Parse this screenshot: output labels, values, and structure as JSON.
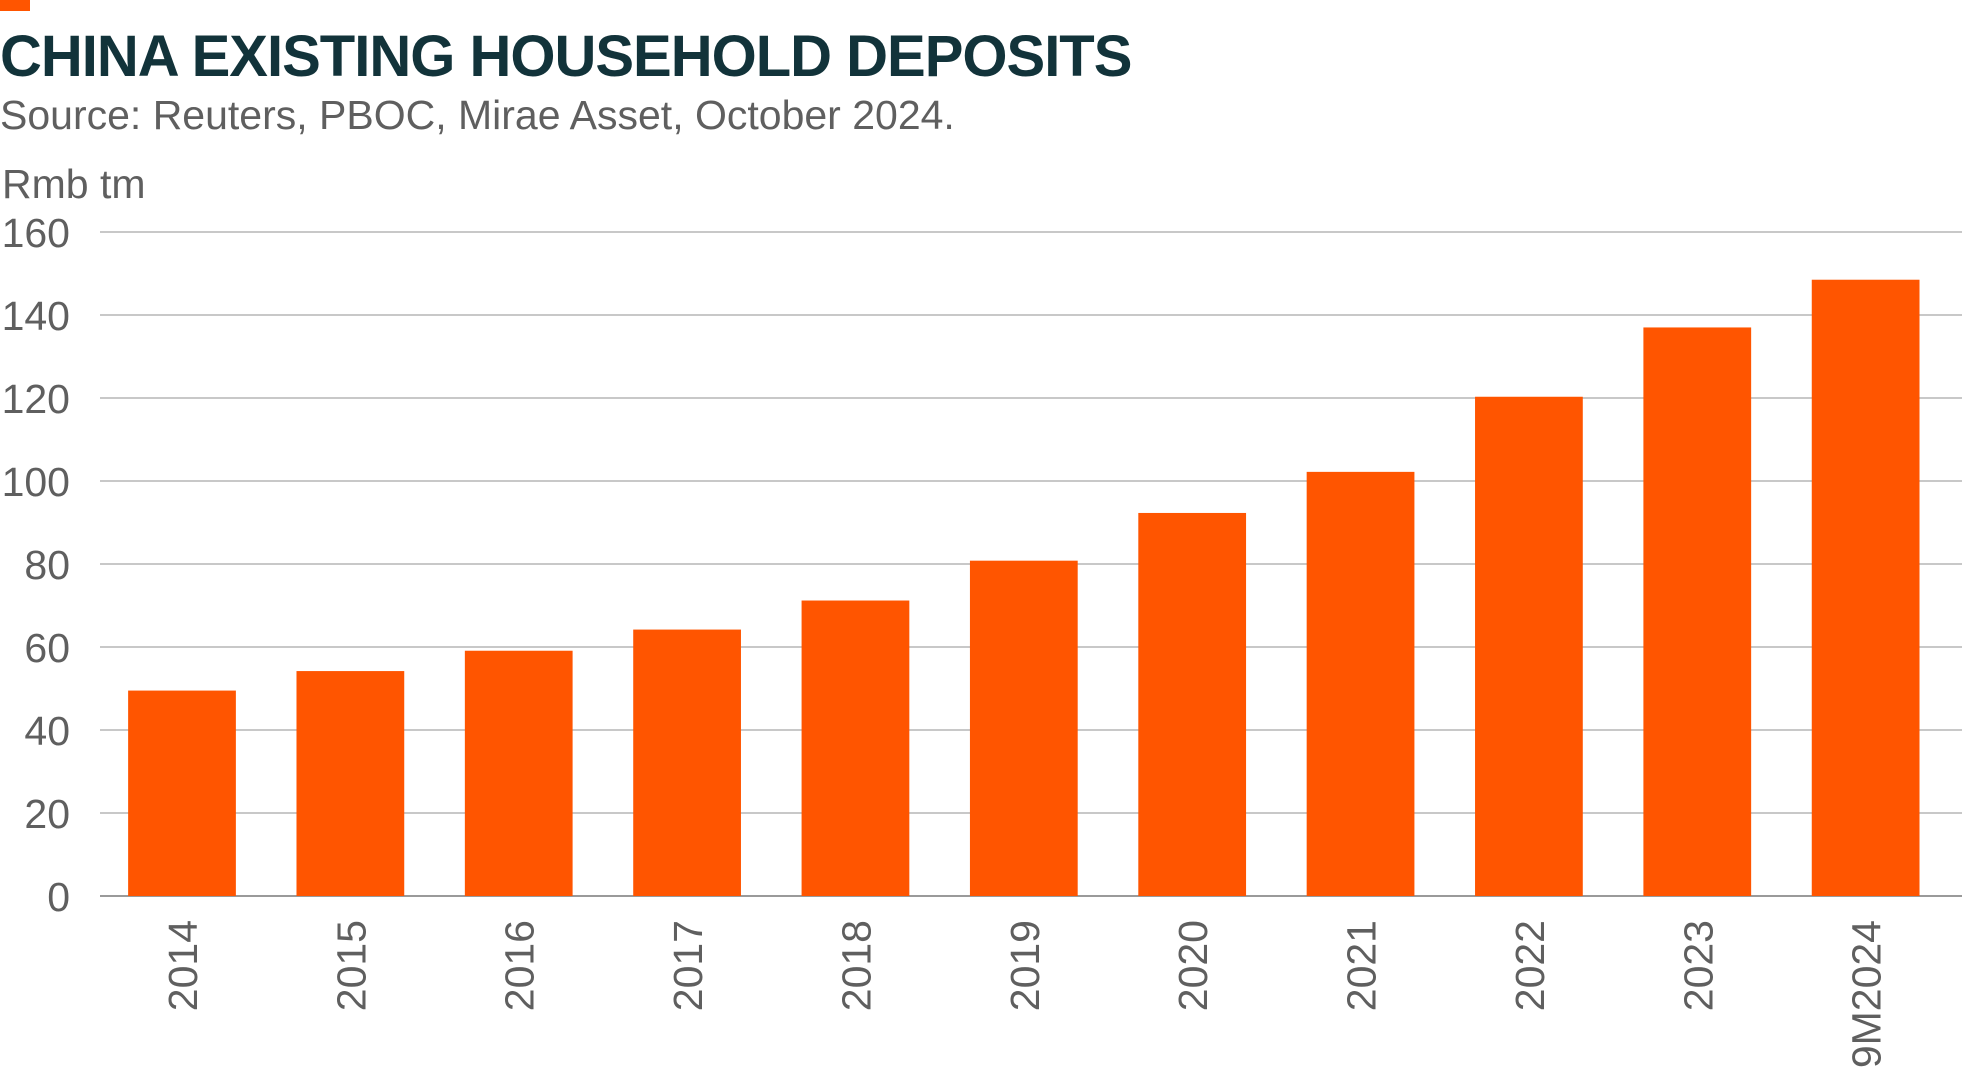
{
  "header": {
    "title": "CHINA EXISTING HOUSEHOLD DEPOSITS",
    "subtitle": "Source: Reuters, PBOC, Mirae Asset, October 2024."
  },
  "colors": {
    "bar": "#ff5500",
    "title": "#12333a",
    "text": "#5f5f5f",
    "grid": "#b5b5b5",
    "accent": "#ff5500"
  },
  "chart_data": {
    "type": "bar",
    "title": "CHINA EXISTING HOUSEHOLD DEPOSITS",
    "subtitle": "Source: Reuters, PBOC, Mirae Asset, October 2024.",
    "xlabel": "",
    "ylabel": "Rmb tm",
    "categories": [
      "2014",
      "2015",
      "2016",
      "2017",
      "2018",
      "2019",
      "2020",
      "2021",
      "2022",
      "2023",
      "9M2024"
    ],
    "values": [
      49.5,
      54.2,
      59.1,
      64.2,
      71.2,
      80.8,
      92.3,
      102.2,
      120.3,
      137.0,
      148.5
    ],
    "ylim": [
      0,
      160
    ],
    "yticks": [
      0,
      20,
      40,
      60,
      80,
      100,
      120,
      140,
      160
    ],
    "grid": true,
    "legend": "none",
    "x_tick_rotation": "vertical"
  }
}
